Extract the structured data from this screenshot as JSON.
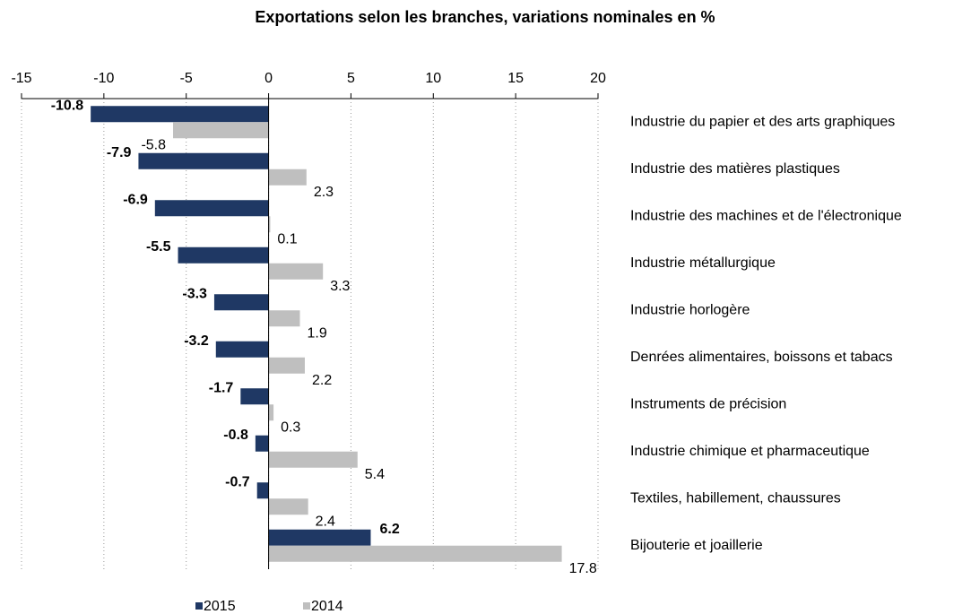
{
  "chart_data": {
    "type": "barh",
    "title": "Exportations selon les branches, variations nominales en %",
    "categories": [
      "Industrie du papier et des arts graphiques",
      "Industrie des matières plastiques",
      "Industrie des machines et de l'électronique",
      "Industrie métallurgique",
      "Industrie horlogère",
      "Denrées alimentaires, boissons et tabacs",
      "Instruments de précision",
      "Industrie chimique et pharmaceutique",
      "Textiles, habillement, chaussures",
      "Bijouterie et joaillerie"
    ],
    "series": [
      {
        "name": "2015",
        "color": "#1f3864",
        "values": [
          -10.8,
          -7.9,
          -6.9,
          -5.5,
          -3.3,
          -3.2,
          -1.7,
          -0.8,
          -0.7,
          6.2
        ]
      },
      {
        "name": "2014",
        "color": "#bfbfbf",
        "values": [
          -5.8,
          2.3,
          0.1,
          3.3,
          1.9,
          2.2,
          0.3,
          5.4,
          2.4,
          17.8
        ]
      }
    ],
    "xlim": [
      -15,
      20
    ],
    "xticks": [
      -15,
      -10,
      -5,
      0,
      5,
      10,
      15,
      20
    ],
    "grid": true,
    "legend": "bottom"
  }
}
